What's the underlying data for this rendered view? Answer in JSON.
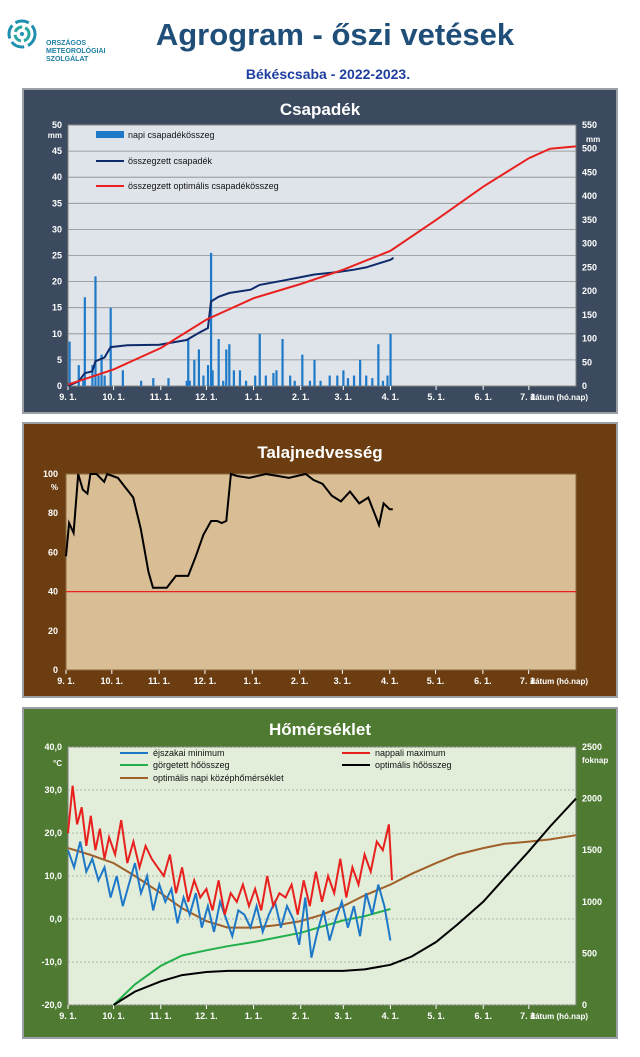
{
  "header": {
    "logo_lines": [
      "ORSZÁGOS",
      "METEOROLÓGIAI",
      "SZOLGÁLAT"
    ],
    "title": "Agrogram - őszi vetések",
    "subtitle": "Békéscsaba - 2022-2023."
  },
  "x_tick_labels": [
    "9. 1.",
    "10. 1.",
    "11. 1.",
    "12. 1.",
    "1. 1.",
    "2. 1.",
    "3. 1.",
    "4. 1.",
    "5. 1.",
    "6. 1.",
    "7. 1."
  ],
  "x_axis_label": "dátum (hó.nap)",
  "colors": {
    "precip_bar": "#1e7ac8",
    "cum_precip": "#0d2a6b",
    "opt_precip": "#e8211e",
    "soil_line": "#000000",
    "soil_threshold": "#e8211e",
    "tmin": "#1e78c8",
    "tmax": "#e8211e",
    "rolling_heat": "#23b04a",
    "opt_heat": "#000000",
    "opt_mean": "#a0602a"
  },
  "chart_data": [
    {
      "type": "bar",
      "title": "Csapadék",
      "ylabel_left": "mm",
      "ylabel_right": "mm",
      "ylim_left": [
        0,
        50
      ],
      "ylim_right": [
        0,
        550
      ],
      "yticks_left": [
        "0",
        "5",
        "10",
        "15",
        "20",
        "25",
        "30",
        "35",
        "40",
        "45",
        "50"
      ],
      "yticks_right": [
        "0",
        "50",
        "100",
        "150",
        "200",
        "250",
        "300",
        "350",
        "400",
        "450",
        "500",
        "550"
      ],
      "grid": true,
      "legend_position": "top-left",
      "series": [
        {
          "name": "napi csapadékösszeg",
          "kind": "bar",
          "axis": "left",
          "x": [
            "9. 2.",
            "9. 8.",
            "9. 11.",
            "9. 12.",
            "9. 17.",
            "9. 19.",
            "9. 21.",
            "9. 23.",
            "9. 25.",
            "9. 29.",
            "10. 7.",
            "10. 19.",
            "10. 27.",
            "11. 6.",
            "11. 18.",
            "11. 19.",
            "11. 20.",
            "11. 23.",
            "11. 26.",
            "11. 29.",
            "12. 2.",
            "12. 4.",
            "12. 5.",
            "12. 9.",
            "12. 12.",
            "12. 14.",
            "12. 16.",
            "12. 19.",
            "12. 23.",
            "12. 27.",
            "1. 2.",
            "1. 5.",
            "1. 9.",
            "1. 14.",
            "1. 16.",
            "1. 20.",
            "1. 25.",
            "1. 28.",
            "2. 2.",
            "2. 7.",
            "2. 10.",
            "2. 14.",
            "2. 20.",
            "2. 25.",
            "3. 1.",
            "3. 4.",
            "3. 8.",
            "3. 12.",
            "3. 16.",
            "3. 20.",
            "3. 24.",
            "3. 27.",
            "3. 30.",
            "4. 1."
          ],
          "values": [
            8.5,
            4,
            1.5,
            17,
            4,
            21,
            2,
            6,
            2,
            15,
            3,
            1,
            1.5,
            1.5,
            1,
            9,
            1,
            5,
            7,
            2,
            4,
            25.5,
            3,
            9,
            1,
            7,
            8,
            3,
            3,
            1,
            2,
            10,
            2,
            2.5,
            3,
            9,
            2,
            1,
            6,
            1,
            5,
            1,
            2,
            2,
            3,
            1.5,
            2,
            5,
            2,
            1.5,
            8,
            1,
            2,
            10
          ]
        },
        {
          "name": "összegzett csapadék",
          "kind": "line",
          "axis": "right",
          "x": [
            "9. 1.",
            "9. 8.",
            "9. 12.",
            "9. 17.",
            "9. 19.",
            "9. 25.",
            "9. 29.",
            "10. 10.",
            "10. 31.",
            "11. 18.",
            "11. 26.",
            "12. 2.",
            "12. 4.",
            "12. 9.",
            "12. 16.",
            "12. 30.",
            "1. 5.",
            "1. 20.",
            "2. 2.",
            "2. 10.",
            "2. 25.",
            "3. 8.",
            "3. 16.",
            "3. 24.",
            "4. 1.",
            "4. 3."
          ],
          "values": [
            0,
            10,
            27,
            31,
            52,
            60,
            82,
            86,
            87,
            97,
            112,
            122,
            178,
            188,
            196,
            203,
            213,
            222,
            230,
            235,
            240,
            245,
            250,
            258,
            266,
            270
          ]
        },
        {
          "name": "összegzett optimális  csapadékösszeg",
          "kind": "line",
          "axis": "right",
          "x": [
            "9. 1.",
            "10. 1.",
            "11. 1.",
            "12. 1.",
            "1. 1.",
            "2. 1.",
            "3. 1.",
            "4. 1.",
            "5. 1.",
            "6. 1.",
            "7. 1.",
            "7. 15.",
            "8. 1."
          ],
          "values": [
            3,
            35,
            80,
            140,
            185,
            215,
            245,
            285,
            350,
            420,
            480,
            500,
            505
          ]
        }
      ]
    },
    {
      "type": "line",
      "title": "Talajnedvesség",
      "ylabel": "%",
      "ylim": [
        0,
        100
      ],
      "yticks": [
        "0",
        "20",
        "40",
        "60",
        "80",
        "100"
      ],
      "threshold": 40,
      "series": [
        {
          "name": "talajnedvesség",
          "x": [
            "9. 1.",
            "9. 3.",
            "9. 6.",
            "9. 9.",
            "9. 12.",
            "9. 15.",
            "9. 17.",
            "9. 21.",
            "9. 26.",
            "9. 28.",
            "10. 5.",
            "10. 15.",
            "10. 20.",
            "10. 25.",
            "10. 28.",
            "11. 1.",
            "11. 6.",
            "11. 12.",
            "11. 15.",
            "11. 20.",
            "11. 25.",
            "11. 30.",
            "12. 5.",
            "12. 9.",
            "12. 12.",
            "12. 15.",
            "12. 18.",
            "12. 22.",
            "12. 30.",
            "1. 10.",
            "1. 25.",
            "2. 5.",
            "2. 10.",
            "2. 16.",
            "2. 22.",
            "2. 28.",
            "3. 6.",
            "3. 12.",
            "3. 18.",
            "3. 22.",
            "3. 25.",
            "3. 28.",
            "4. 1.",
            "4. 3."
          ],
          "values": [
            58,
            75,
            70,
            100,
            92,
            90,
            100,
            100,
            96,
            100,
            98,
            88,
            72,
            50,
            42,
            42,
            42,
            48,
            48,
            48,
            58,
            69,
            76,
            76,
            75,
            76,
            100,
            99,
            98,
            100,
            98,
            100,
            97,
            95,
            89,
            86,
            91,
            85,
            88,
            80,
            74,
            85,
            82,
            82
          ]
        }
      ]
    },
    {
      "type": "line",
      "title": "Hőmérséklet",
      "ylabel_left": "°C",
      "ylabel_right": "foknap",
      "ylim_left": [
        -20,
        40
      ],
      "ylim_right": [
        0,
        2500
      ],
      "yticks_left": [
        "-20,0",
        "-10,0",
        "0,0",
        "10,0",
        "20,0",
        "30,0",
        "40,0"
      ],
      "yticks_right": [
        "0",
        "500",
        "1000",
        "1500",
        "2000",
        "2500"
      ],
      "legend_position": "top",
      "series": [
        {
          "name": "éjszakai minimum",
          "axis": "left",
          "x": [
            "9. 1.",
            "9. 5.",
            "9. 9.",
            "9. 13.",
            "9. 17.",
            "9. 21.",
            "9. 25.",
            "9. 29.",
            "10. 3.",
            "10. 7.",
            "10. 11.",
            "10. 15.",
            "10. 19.",
            "10. 23.",
            "10. 27.",
            "10. 31.",
            "11. 4.",
            "11. 8.",
            "11. 12.",
            "11. 16.",
            "11. 20.",
            "11. 24.",
            "11. 28.",
            "12. 2.",
            "12. 6.",
            "12. 10.",
            "12. 14.",
            "12. 18.",
            "12. 22.",
            "12. 26.",
            "12. 30.",
            "1. 3.",
            "1. 7.",
            "1. 11.",
            "1. 15.",
            "1. 19.",
            "1. 23.",
            "1. 27.",
            "1. 31.",
            "2. 4.",
            "2. 8.",
            "2. 12.",
            "2. 16.",
            "2. 20.",
            "2. 24.",
            "2. 28.",
            "3. 4.",
            "3. 8.",
            "3. 12.",
            "3. 16.",
            "3. 20.",
            "3. 24.",
            "3. 28.",
            "4. 1."
          ],
          "values": [
            16,
            12,
            18,
            11,
            14,
            9,
            12,
            5,
            10,
            3,
            8,
            13,
            6,
            10,
            2,
            8,
            4,
            7,
            -1,
            5,
            1,
            6,
            -2,
            3,
            -3,
            4,
            0,
            -4,
            2,
            1,
            -2,
            3,
            -3,
            1,
            4,
            -2,
            3,
            0,
            -6,
            5,
            -9,
            -3,
            2,
            -5,
            0,
            4,
            -2,
            3,
            -4,
            6,
            1,
            8,
            3,
            -5
          ]
        },
        {
          "name": "nappali maximum",
          "axis": "left",
          "x": [
            "9. 1.",
            "9. 4.",
            "9. 7.",
            "9. 10.",
            "9. 13.",
            "9. 16.",
            "9. 19.",
            "9. 22.",
            "9. 25.",
            "9. 28.",
            "10. 2.",
            "10. 6.",
            "10. 10.",
            "10. 14.",
            "10. 18.",
            "10. 22.",
            "10. 26.",
            "10. 30.",
            "11. 3.",
            "11. 7.",
            "11. 11.",
            "11. 15.",
            "11. 19.",
            "11. 23.",
            "11. 27.",
            "12. 1.",
            "12. 5.",
            "12. 9.",
            "12. 13.",
            "12. 17.",
            "12. 21.",
            "12. 25.",
            "12. 29.",
            "1. 2.",
            "1. 6.",
            "1. 10.",
            "1. 14.",
            "1. 18.",
            "1. 22.",
            "1. 26.",
            "1. 30.",
            "2. 3.",
            "2. 7.",
            "2. 11.",
            "2. 15.",
            "2. 19.",
            "2. 23.",
            "2. 27.",
            "3. 3.",
            "3. 7.",
            "3. 11.",
            "3. 15.",
            "3. 19.",
            "3. 23.",
            "3. 27.",
            "3. 31.",
            "4. 2."
          ],
          "values": [
            20,
            31,
            22,
            26,
            17,
            24,
            16,
            21,
            14,
            19,
            15,
            23,
            13,
            18,
            12,
            17,
            14,
            12,
            10,
            15,
            6,
            12,
            4,
            9,
            5,
            7,
            2,
            9,
            1,
            6,
            4,
            8,
            3,
            7,
            2,
            10,
            3,
            6,
            5,
            8,
            1,
            9,
            3,
            11,
            4,
            10,
            6,
            14,
            5,
            12,
            8,
            15,
            11,
            18,
            16,
            22,
            9
          ]
        },
        {
          "name": "görgetett hőösszeg",
          "axis": "right",
          "x": [
            "10. 1.",
            "10. 15.",
            "11. 1.",
            "11. 15.",
            "12. 1.",
            "12. 15.",
            "1. 1.",
            "1. 15.",
            "2. 1.",
            "2. 15.",
            "3. 1.",
            "3. 15.",
            "4. 1."
          ],
          "values": [
            0,
            200,
            380,
            480,
            530,
            570,
            610,
            650,
            700,
            760,
            820,
            860,
            930
          ]
        },
        {
          "name": "optimális hőösszeg",
          "axis": "right",
          "x": [
            "10. 1.",
            "10. 15.",
            "11. 1.",
            "11. 15.",
            "12. 1.",
            "12. 15.",
            "1. 1.",
            "2. 1.",
            "3. 1.",
            "3. 15.",
            "4. 1.",
            "4. 15.",
            "5. 1.",
            "5. 15.",
            "6. 1.",
            "6. 15.",
            "7. 1.",
            "7. 15.",
            "8. 1."
          ],
          "values": [
            0,
            130,
            230,
            290,
            320,
            330,
            330,
            330,
            330,
            345,
            390,
            470,
            610,
            780,
            1000,
            1230,
            1490,
            1730,
            2000
          ]
        },
        {
          "name": "optimális napi középhőmérséklet",
          "axis": "left",
          "x": [
            "9. 1.",
            "9. 15.",
            "10. 1.",
            "10. 15.",
            "11. 1.",
            "11. 15.",
            "12. 1.",
            "12. 15.",
            "1. 1.",
            "1. 15.",
            "2. 1.",
            "2. 15.",
            "3. 1.",
            "3. 15.",
            "4. 1.",
            "4. 15.",
            "5. 1.",
            "5. 15.",
            "6. 1.",
            "6. 15.",
            "7. 1.",
            "7. 15.",
            "8. 1."
          ],
          "values": [
            16.5,
            15,
            13,
            10,
            6,
            2.5,
            -0.5,
            -2,
            -2,
            -1.5,
            -0.5,
            1,
            3,
            5.5,
            8,
            10.5,
            13,
            15,
            16.5,
            17.5,
            18,
            18.5,
            19.5
          ]
        }
      ]
    }
  ]
}
